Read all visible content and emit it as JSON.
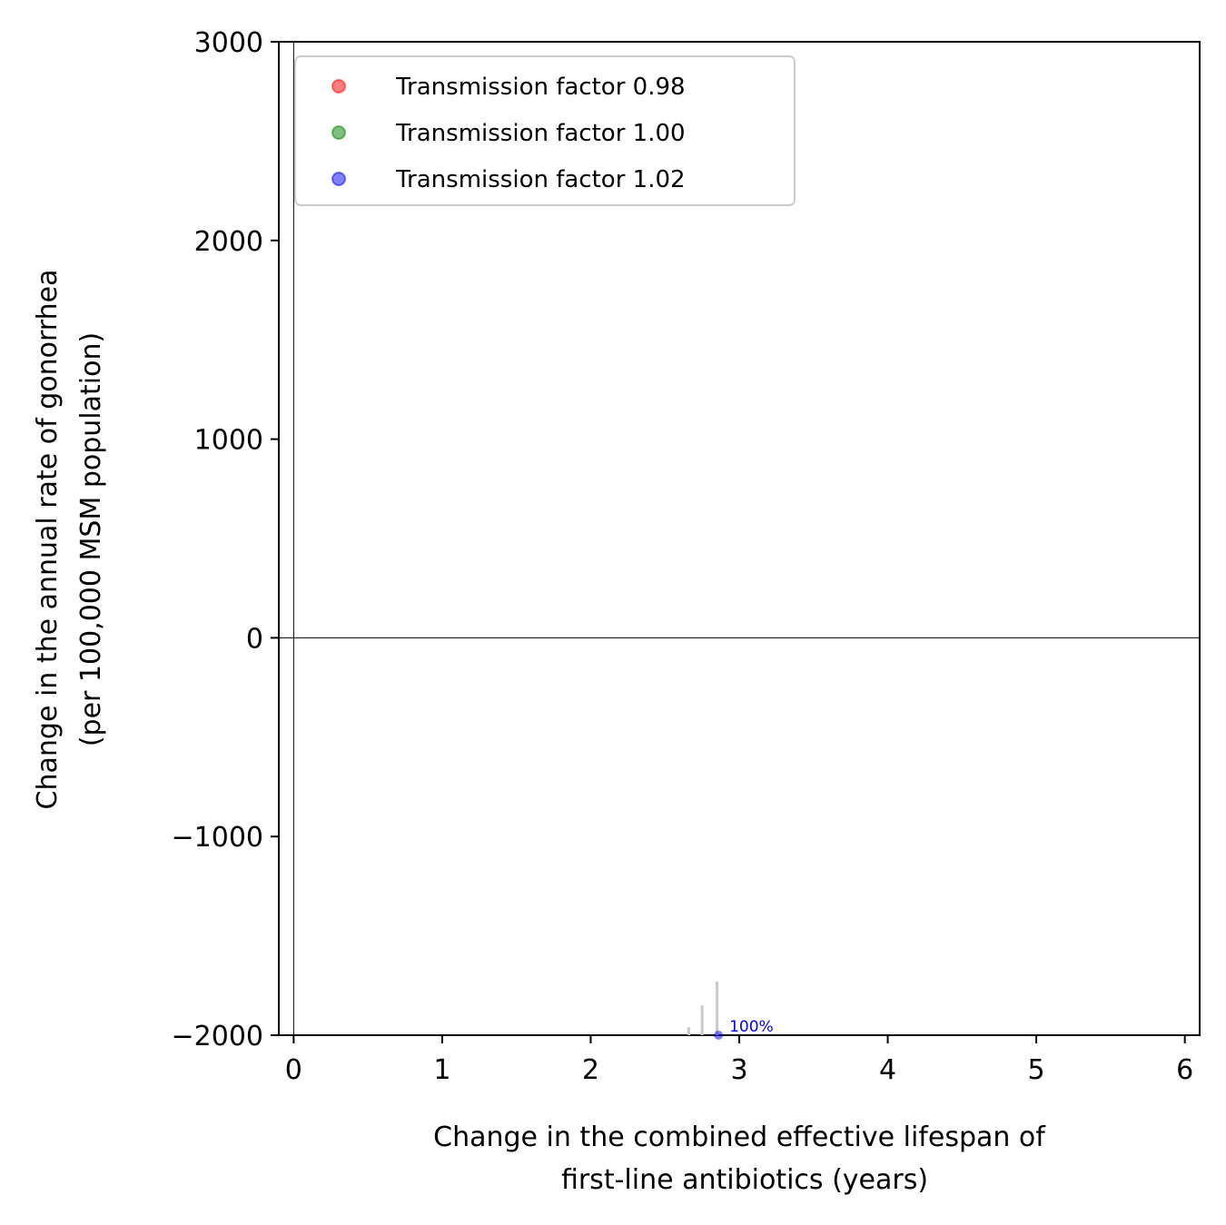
{
  "chart_data": {
    "type": "scatter",
    "title": "",
    "xlabel_lines": [
      "Change in the combined effective lifespan of",
      "first-line antibiotics (years)"
    ],
    "ylabel_lines": [
      "Change in the annual rate of gonorrhea",
      "(per 100,000 MSM population)"
    ],
    "xlim": [
      -0.1,
      6.1
    ],
    "ylim": [
      -2000,
      3000
    ],
    "xticks": [
      0,
      1,
      2,
      3,
      4,
      5,
      6
    ],
    "xtick_labels": [
      "0",
      "1",
      "2",
      "3",
      "4",
      "5",
      "6"
    ],
    "yticks": [
      -2000,
      -1000,
      0,
      1000,
      2000,
      3000
    ],
    "ytick_labels": [
      "−2000",
      "−1000",
      "0",
      "1000",
      "2000",
      "3000"
    ],
    "reference_lines": {
      "horizontal_y": 0,
      "vertical_x": 0
    },
    "grid": false,
    "legend_position": "upper-left",
    "series": [
      {
        "name": "Transmission factor 0.98",
        "color": "#ff0000",
        "alpha": 0.5,
        "points": []
      },
      {
        "name": "Transmission factor 1.00",
        "color": "#008000",
        "alpha": 0.5,
        "points": []
      },
      {
        "name": "Transmission factor 1.02",
        "color": "#0000ff",
        "alpha": 0.5,
        "points": [
          {
            "x": 2.86,
            "y": -2000,
            "label": "100%"
          }
        ]
      }
    ],
    "error_bars": [
      {
        "x": 2.66,
        "y_low": -2000,
        "y_high": -1960
      },
      {
        "x": 2.75,
        "y_low": -2000,
        "y_high": -1850
      },
      {
        "x": 2.85,
        "y_low": -2000,
        "y_high": -1730
      }
    ],
    "error_bar_color": "#c8c8c8"
  }
}
